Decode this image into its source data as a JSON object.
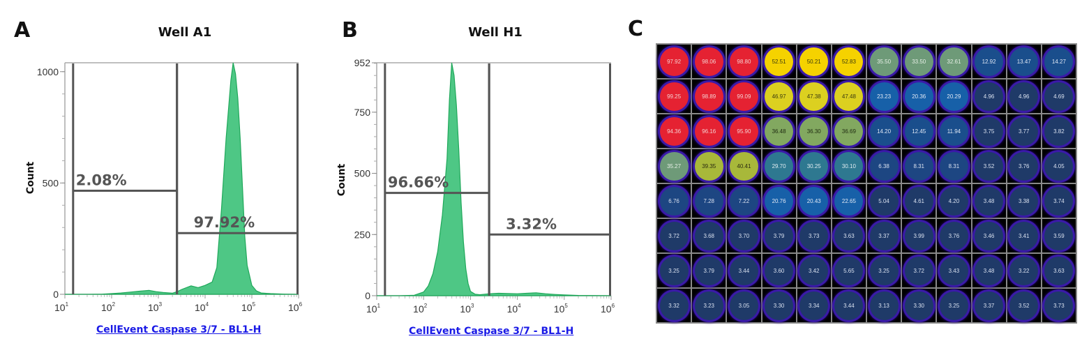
{
  "panels": [
    {
      "letter": "A"
    },
    {
      "letter": "B"
    },
    {
      "letter": "C"
    }
  ],
  "chart_data": [
    {
      "type": "area",
      "title": "Well A1",
      "xlabel": "CellEvent Caspase 3/7 - BL1-H",
      "ylabel": "Count",
      "xscale": "log",
      "xlim": [
        10,
        1000000
      ],
      "ylim": [
        0,
        1040
      ],
      "x_ticks": [
        {
          "base": "10",
          "exp": "1"
        },
        {
          "base": "10",
          "exp": "2"
        },
        {
          "base": "10",
          "exp": "3"
        },
        {
          "base": "10",
          "exp": "4"
        },
        {
          "base": "10",
          "exp": "5"
        },
        {
          "base": "10",
          "exp": "6"
        }
      ],
      "y_ticks": [
        {
          "value": 0,
          "label": "0"
        },
        {
          "value": 500,
          "label": "500"
        },
        {
          "value": 1000,
          "label": "1000"
        }
      ],
      "y_minor_step": 100,
      "fill_color": "#4ec785",
      "line_color": "#1fa85a",
      "histogram": {
        "log10_x": [
          1.0,
          1.5,
          1.8,
          2.0,
          2.2,
          2.4,
          2.6,
          2.8,
          2.95,
          3.1,
          3.3,
          3.4,
          3.5,
          3.7,
          3.85,
          4.0,
          4.15,
          4.25,
          4.35,
          4.45,
          4.55,
          4.6,
          4.65,
          4.7,
          4.75,
          4.8,
          4.85,
          4.9,
          5.0,
          5.1,
          5.2,
          5.4,
          5.7,
          6.0
        ],
        "counts": [
          0,
          0,
          1,
          3,
          6,
          10,
          14,
          18,
          12,
          8,
          5,
          12,
          22,
          38,
          30,
          40,
          55,
          120,
          380,
          700,
          960,
          1040,
          990,
          880,
          700,
          480,
          260,
          130,
          40,
          15,
          6,
          3,
          1,
          0
        ]
      },
      "gates": [
        {
          "label": "2.08%",
          "x_range": [
            15,
            2500
          ],
          "y_level": 465,
          "label_pos": "upper-left"
        },
        {
          "label": "97.92%",
          "x_range": [
            2500,
            1000000
          ],
          "y_level": 275,
          "label_pos": "upper-left"
        }
      ]
    },
    {
      "type": "area",
      "title": "Well H1",
      "xlabel": "CellEvent Caspase 3/7 - BL1-H",
      "ylabel": "Count",
      "xscale": "log",
      "xlim": [
        10,
        1000000
      ],
      "ylim": [
        0,
        952
      ],
      "x_ticks": [
        {
          "base": "10",
          "exp": "1"
        },
        {
          "base": "10",
          "exp": "2"
        },
        {
          "base": "10",
          "exp": "3"
        },
        {
          "base": "10",
          "exp": "4"
        },
        {
          "base": "10",
          "exp": "5"
        },
        {
          "base": "10",
          "exp": "6"
        }
      ],
      "y_ticks": [
        {
          "value": 0,
          "label": "0"
        },
        {
          "value": 250,
          "label": "250"
        },
        {
          "value": 500,
          "label": "500"
        },
        {
          "value": 750,
          "label": "750"
        },
        {
          "value": 952,
          "label": "952"
        }
      ],
      "y_minor_step": 50,
      "fill_color": "#4ec785",
      "line_color": "#1fa85a",
      "histogram": {
        "log10_x": [
          1.0,
          1.5,
          1.8,
          2.0,
          2.1,
          2.2,
          2.3,
          2.4,
          2.5,
          2.55,
          2.6,
          2.65,
          2.7,
          2.75,
          2.8,
          2.85,
          2.9,
          2.95,
          3.0,
          3.1,
          3.2,
          3.4,
          3.6,
          3.8,
          4.0,
          4.2,
          4.4,
          4.6,
          4.8,
          5.0,
          5.3,
          6.0
        ],
        "counts": [
          0,
          0,
          2,
          15,
          40,
          90,
          180,
          330,
          560,
          800,
          952,
          900,
          780,
          600,
          380,
          220,
          110,
          50,
          18,
          6,
          4,
          8,
          10,
          9,
          8,
          10,
          12,
          8,
          5,
          3,
          1,
          0
        ]
      },
      "gates": [
        {
          "label": "96.66%",
          "x_range": [
            15,
            2500
          ],
          "y_level": 420,
          "label_pos": "upper-left"
        },
        {
          "label": "3.32%",
          "x_range": [
            2500,
            1000000
          ],
          "y_level": 250,
          "label_pos": "upper-left"
        }
      ]
    },
    {
      "type": "heatmap",
      "title": "",
      "rows": 8,
      "cols": 12,
      "values": [
        [
          97.92,
          98.06,
          98.8,
          52.51,
          50.21,
          52.83,
          35.5,
          33.5,
          32.61,
          12.92,
          13.47,
          14.27
        ],
        [
          99.25,
          98.89,
          99.09,
          46.97,
          47.38,
          47.48,
          23.23,
          20.36,
          20.29,
          4.96,
          4.96,
          4.69
        ],
        [
          94.36,
          96.16,
          95.9,
          36.48,
          36.3,
          36.69,
          14.2,
          12.45,
          11.94,
          3.75,
          3.77,
          3.82
        ],
        [
          35.27,
          39.35,
          40.41,
          29.7,
          30.25,
          30.1,
          6.38,
          8.31,
          8.31,
          3.52,
          3.76,
          4.05
        ],
        [
          6.76,
          7.28,
          7.22,
          20.76,
          20.43,
          22.65,
          5.04,
          4.61,
          4.2,
          3.48,
          3.38,
          3.74
        ],
        [
          3.72,
          3.68,
          3.7,
          3.79,
          3.73,
          3.63,
          3.37,
          3.99,
          3.76,
          3.46,
          3.41,
          3.59
        ],
        [
          3.25,
          3.79,
          3.44,
          3.6,
          3.42,
          5.65,
          3.25,
          3.72,
          3.43,
          3.48,
          3.22,
          3.63
        ],
        [
          3.32,
          3.23,
          3.05,
          3.3,
          3.34,
          3.44,
          3.13,
          3.3,
          3.25,
          3.37,
          3.52,
          3.73
        ]
      ],
      "value_labels": [
        [
          "97.92",
          "98.06",
          "98.80",
          "52.51",
          "50.21",
          "52.83",
          "35.50",
          "33.50",
          "32.61",
          "12.92",
          "13.47",
          "14.27"
        ],
        [
          "99.25",
          "98.89",
          "99.09",
          "46.97",
          "47.38",
          "47.48",
          "23.23",
          "20.36",
          "20.29",
          "4.96",
          "4.96",
          "4.69"
        ],
        [
          "94.36",
          "96.16",
          "95.90",
          "36.48",
          "36.30",
          "36.69",
          "14.20",
          "12.45",
          "11.94",
          "3.75",
          "3.77",
          "3.82"
        ],
        [
          "35.27",
          "39.35",
          "40.41",
          "29.70",
          "30.25",
          "30.10",
          "6.38",
          "8.31",
          "8.31",
          "3.52",
          "3.76",
          "4.05"
        ],
        [
          "6.76",
          "7.28",
          "7.22",
          "20.76",
          "20.43",
          "22.65",
          "5.04",
          "4.61",
          "4.20",
          "3.48",
          "3.38",
          "3.74"
        ],
        [
          "3.72",
          "3.68",
          "3.70",
          "3.79",
          "3.73",
          "3.63",
          "3.37",
          "3.99",
          "3.76",
          "3.46",
          "3.41",
          "3.59"
        ],
        [
          "3.25",
          "3.79",
          "3.44",
          "3.60",
          "3.42",
          "5.65",
          "3.25",
          "3.72",
          "3.43",
          "3.48",
          "3.22",
          "3.63"
        ],
        [
          "3.32",
          "3.23",
          "3.05",
          "3.30",
          "3.34",
          "3.44",
          "3.13",
          "3.30",
          "3.25",
          "3.37",
          "3.52",
          "3.73"
        ]
      ],
      "color_scale": [
        {
          "min": 90,
          "color": "#e52232",
          "text": "#f3d0d0"
        },
        {
          "min": 49,
          "color": "#f5d200",
          "text": "#3a3a10"
        },
        {
          "min": 45,
          "color": "#dcd020",
          "text": "#3a3a10"
        },
        {
          "min": 39,
          "color": "#a8b83a",
          "text": "#2a2a10"
        },
        {
          "min": 36,
          "color": "#82a860",
          "text": "#1e2a10"
        },
        {
          "min": 32,
          "color": "#6e9a78",
          "text": "#e6efe6"
        },
        {
          "min": 25,
          "color": "#2e7890",
          "text": "#e0ecf0"
        },
        {
          "min": 18,
          "color": "#1760a8",
          "text": "#e0e8f4"
        },
        {
          "min": 10,
          "color": "#1a4e8c",
          "text": "#e0e8f4"
        },
        {
          "min": 6,
          "color": "#1d4682",
          "text": "#d8e0ee"
        },
        {
          "min": 0,
          "color": "#1f3a68",
          "text": "#d8e0ee"
        }
      ],
      "background": "#000000",
      "ring_color": "#3a1aa8"
    }
  ]
}
